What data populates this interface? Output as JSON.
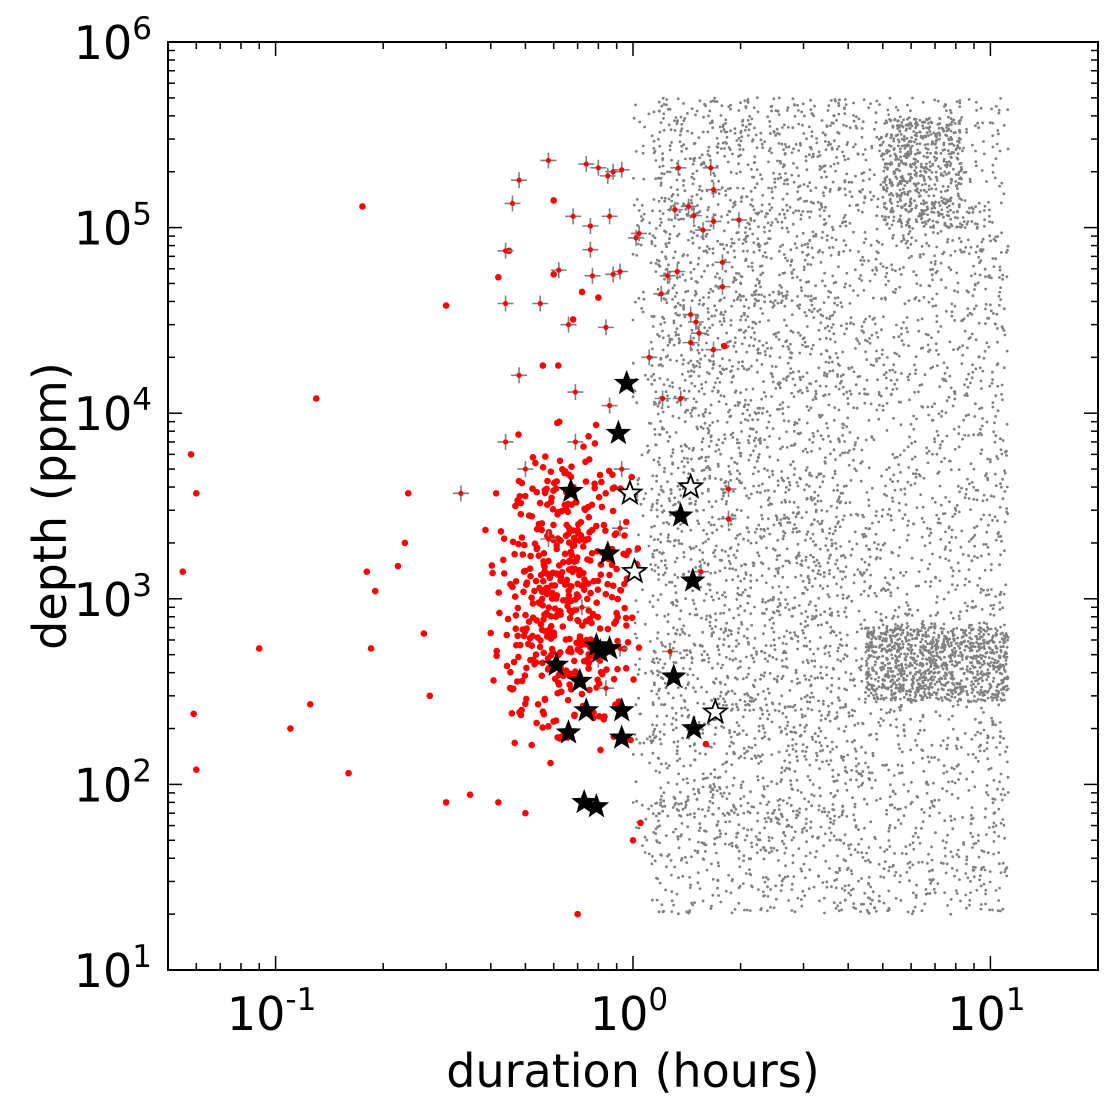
{
  "chart_data": {
    "type": "scatter",
    "title": "",
    "xlabel": "duration (hours)",
    "ylabel": "depth (ppm)",
    "xscale": "log",
    "yscale": "log",
    "xlim": [
      0.05,
      20
    ],
    "ylim": [
      10,
      1000000
    ],
    "grid": false,
    "legend": "none",
    "x_major_ticks": [
      {
        "base": "10",
        "exp": "-1",
        "value": 0.1
      },
      {
        "base": "10",
        "exp": "0",
        "value": 1
      },
      {
        "base": "10",
        "exp": "1",
        "value": 10
      }
    ],
    "y_major_ticks": [
      {
        "base": "10",
        "exp": "1",
        "value": 10
      },
      {
        "base": "10",
        "exp": "2",
        "value": 100
      },
      {
        "base": "10",
        "exp": "3",
        "value": 1000
      },
      {
        "base": "10",
        "exp": "4",
        "value": 10000
      },
      {
        "base": "10",
        "exp": "5",
        "value": 100000
      },
      {
        "base": "10",
        "exp": "6",
        "value": 1000000
      }
    ],
    "colors": {
      "gray": "#808080",
      "red": "#ff0000",
      "black": "#000000",
      "cross": "#808080"
    },
    "series": [
      {
        "marker": "small-gray-dot",
        "color": "#808080",
        "description_note": "dense background population",
        "clusters": [
          {
            "xlog": [
              0.05,
              1.05
            ],
            "ylog": [
              1.3,
              5.7
            ],
            "n": 4200
          },
          {
            "xlog": [
              0.65,
              1.05
            ],
            "ylog": [
              2.45,
              2.85
            ],
            "n": 900
          },
          {
            "xlog": [
              0.7,
              0.92
            ],
            "ylog": [
              5.0,
              5.6
            ],
            "n": 500
          },
          {
            "xlog": [
              0.0,
              0.6
            ],
            "ylog": [
              1.6,
              5.7
            ],
            "n": 1200
          }
        ],
        "points": []
      },
      {
        "marker": "red-dot",
        "color": "#ff0000",
        "points": [
          {
            "x": 0.055,
            "y": 1400
          },
          {
            "x": 0.058,
            "y": 6000
          },
          {
            "x": 0.06,
            "y": 3700
          },
          {
            "x": 0.059,
            "y": 240
          },
          {
            "x": 0.06,
            "y": 120
          },
          {
            "x": 0.09,
            "y": 540
          },
          {
            "x": 0.11,
            "y": 200
          },
          {
            "x": 0.125,
            "y": 270
          },
          {
            "x": 0.13,
            "y": 12000
          },
          {
            "x": 0.16,
            "y": 115
          },
          {
            "x": 0.175,
            "y": 130000
          },
          {
            "x": 0.18,
            "y": 1400
          },
          {
            "x": 0.185,
            "y": 540
          },
          {
            "x": 0.19,
            "y": 1100
          },
          {
            "x": 0.22,
            "y": 1500
          },
          {
            "x": 0.23,
            "y": 2000
          },
          {
            "x": 0.235,
            "y": 3700
          },
          {
            "x": 0.26,
            "y": 650
          },
          {
            "x": 0.27,
            "y": 300
          },
          {
            "x": 0.3,
            "y": 38000
          },
          {
            "x": 0.3,
            "y": 80
          },
          {
            "x": 0.35,
            "y": 88
          },
          {
            "x": 0.42,
            "y": 80
          },
          {
            "x": 0.45,
            "y": 75000
          },
          {
            "x": 0.42,
            "y": 54000
          },
          {
            "x": 0.5,
            "y": 70
          },
          {
            "x": 0.6,
            "y": 140000
          },
          {
            "x": 0.6,
            "y": 56000
          },
          {
            "x": 0.7,
            "y": 20
          },
          {
            "x": 0.95,
            "y": 170
          },
          {
            "x": 1.0,
            "y": 50
          },
          {
            "x": 1.05,
            "y": 62
          },
          {
            "x": 1.6,
            "y": 165
          },
          {
            "x": 1.8,
            "y": 23000
          },
          {
            "x": 0.72,
            "y": 45000
          },
          {
            "x": 0.8,
            "y": 42000
          },
          {
            "x": 0.68,
            "y": 32000
          }
        ],
        "cluster": {
          "xlog": [
            -0.42,
            0.03
          ],
          "ylog": [
            1.85,
            4.3
          ],
          "n": 480
        }
      },
      {
        "marker": "gray-cross-red-center",
        "color": "#808080",
        "points": [
          {
            "x": 0.48,
            "y": 180000
          },
          {
            "x": 0.58,
            "y": 230000
          },
          {
            "x": 0.74,
            "y": 220000
          },
          {
            "x": 0.8,
            "y": 210000
          },
          {
            "x": 0.85,
            "y": 190000
          },
          {
            "x": 0.88,
            "y": 200000
          },
          {
            "x": 0.93,
            "y": 205000
          },
          {
            "x": 0.46,
            "y": 135000
          },
          {
            "x": 0.68,
            "y": 115000
          },
          {
            "x": 0.76,
            "y": 102000
          },
          {
            "x": 0.86,
            "y": 115000
          },
          {
            "x": 1.02,
            "y": 88000
          },
          {
            "x": 1.04,
            "y": 93000
          },
          {
            "x": 0.44,
            "y": 75000
          },
          {
            "x": 0.76,
            "y": 76000
          },
          {
            "x": 0.62,
            "y": 59000
          },
          {
            "x": 0.77,
            "y": 55000
          },
          {
            "x": 0.88,
            "y": 56000
          },
          {
            "x": 0.92,
            "y": 58000
          },
          {
            "x": 0.44,
            "y": 39000
          },
          {
            "x": 0.55,
            "y": 39000
          },
          {
            "x": 1.2,
            "y": 44000
          },
          {
            "x": 1.25,
            "y": 55000
          },
          {
            "x": 1.33,
            "y": 58000
          },
          {
            "x": 1.31,
            "y": 125000
          },
          {
            "x": 1.34,
            "y": 210000
          },
          {
            "x": 1.43,
            "y": 130000
          },
          {
            "x": 1.48,
            "y": 116000
          },
          {
            "x": 1.57,
            "y": 97000
          },
          {
            "x": 1.65,
            "y": 210000
          },
          {
            "x": 1.68,
            "y": 160000
          },
          {
            "x": 1.68,
            "y": 108000
          },
          {
            "x": 1.98,
            "y": 110000
          },
          {
            "x": 1.78,
            "y": 65000
          },
          {
            "x": 1.78,
            "y": 48000
          },
          {
            "x": 1.45,
            "y": 34000
          },
          {
            "x": 1.5,
            "y": 31000
          },
          {
            "x": 1.53,
            "y": 27000
          },
          {
            "x": 1.45,
            "y": 24000
          },
          {
            "x": 1.68,
            "y": 22000
          },
          {
            "x": 1.36,
            "y": 12000
          },
          {
            "x": 1.21,
            "y": 12000
          },
          {
            "x": 1.11,
            "y": 20000
          },
          {
            "x": 0.66,
            "y": 30000
          },
          {
            "x": 0.84,
            "y": 29000
          },
          {
            "x": 0.48,
            "y": 16000
          },
          {
            "x": 0.69,
            "y": 13000
          },
          {
            "x": 0.86,
            "y": 11000
          },
          {
            "x": 0.44,
            "y": 7000
          },
          {
            "x": 0.69,
            "y": 7000
          },
          {
            "x": 0.93,
            "y": 5000
          },
          {
            "x": 0.5,
            "y": 5000
          },
          {
            "x": 0.33,
            "y": 3700
          },
          {
            "x": 0.58,
            "y": 2100
          },
          {
            "x": 0.92,
            "y": 2400
          },
          {
            "x": 0.72,
            "y": 900
          },
          {
            "x": 1.55,
            "y": 1400
          },
          {
            "x": 1.85,
            "y": 2700
          },
          {
            "x": 1.85,
            "y": 3900
          },
          {
            "x": 1.27,
            "y": 520
          },
          {
            "x": 0.92,
            "y": 540
          },
          {
            "x": 0.8,
            "y": 470
          },
          {
            "x": 0.84,
            "y": 330
          }
        ]
      },
      {
        "marker": "black-filled-star",
        "color": "#000000",
        "points": [
          {
            "x": 0.96,
            "y": 14500
          },
          {
            "x": 0.91,
            "y": 7800
          },
          {
            "x": 0.67,
            "y": 3800
          },
          {
            "x": 1.36,
            "y": 2800
          },
          {
            "x": 0.85,
            "y": 1750
          },
          {
            "x": 1.47,
            "y": 1250
          },
          {
            "x": 0.79,
            "y": 560
          },
          {
            "x": 0.81,
            "y": 520
          },
          {
            "x": 0.86,
            "y": 540
          },
          {
            "x": 0.61,
            "y": 440
          },
          {
            "x": 0.71,
            "y": 360
          },
          {
            "x": 1.3,
            "y": 380
          },
          {
            "x": 0.74,
            "y": 250
          },
          {
            "x": 0.93,
            "y": 250
          },
          {
            "x": 0.66,
            "y": 190
          },
          {
            "x": 0.93,
            "y": 178
          },
          {
            "x": 1.48,
            "y": 200
          },
          {
            "x": 0.73,
            "y": 80
          },
          {
            "x": 0.79,
            "y": 76
          }
        ]
      },
      {
        "marker": "open-star",
        "color": "#000000",
        "points": [
          {
            "x": 0.98,
            "y": 3700
          },
          {
            "x": 1.45,
            "y": 4000
          },
          {
            "x": 1.01,
            "y": 1400
          },
          {
            "x": 1.7,
            "y": 245
          }
        ]
      }
    ]
  }
}
